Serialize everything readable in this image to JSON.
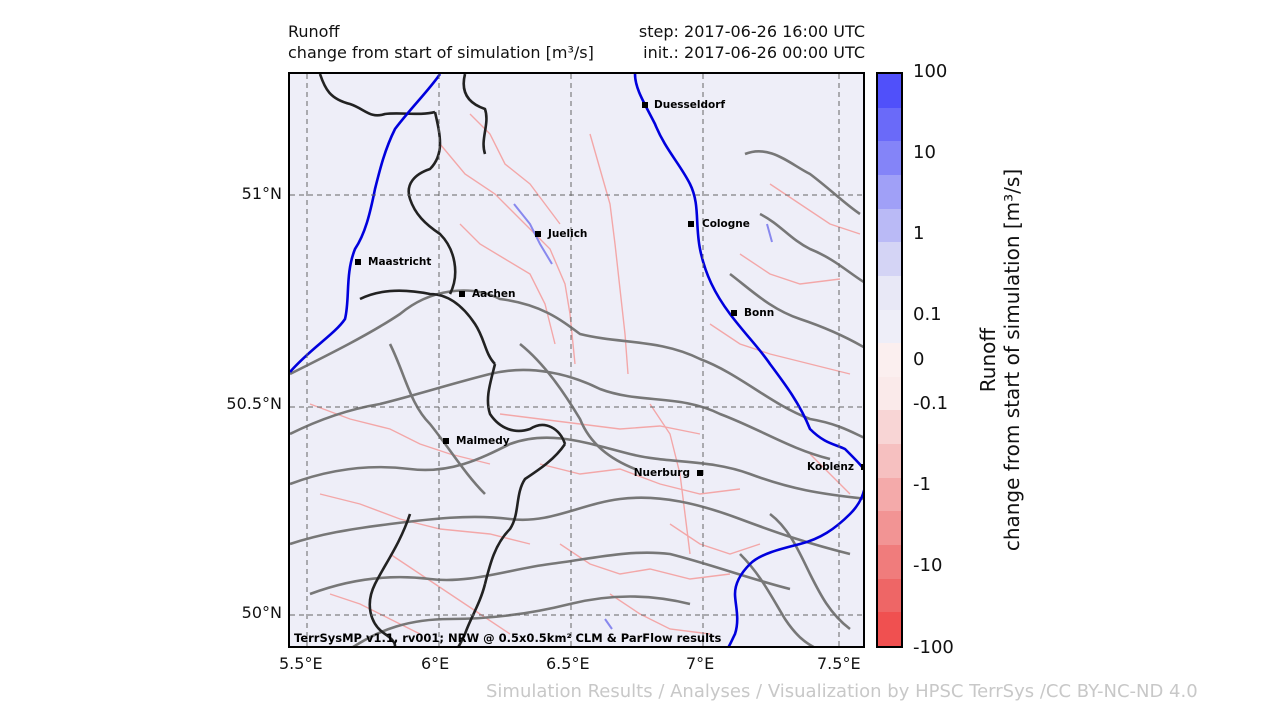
{
  "header": {
    "variable": "Runoff",
    "description": "change from start of simulation [m³/s]",
    "step": "step: 2017-06-26 16:00 UTC",
    "init": "init.: 2017-06-26 00:00 UTC"
  },
  "map": {
    "lon_range": [
      5.47,
      5.61
    ],
    "lat_range": [
      49.93,
      51.31
    ],
    "lon_ticks": [
      "5.5°E",
      "6°E",
      "6.5°E",
      "7°E",
      "7.5°E"
    ],
    "lat_ticks": [
      "51°N",
      "50.5°N",
      "50°N"
    ],
    "credit": "TerrSysMP v1.1, rv001; NRW @ 0.5x0.5km² CLM & ParFlow results",
    "cities": [
      {
        "name": "Duesseldorf",
        "lon": 6.78,
        "lat": 51.23
      },
      {
        "name": "Juelich",
        "lon": 6.36,
        "lat": 50.92
      },
      {
        "name": "Cologne",
        "lon": 6.95,
        "lat": 50.94
      },
      {
        "name": "Maastricht",
        "lon": 5.69,
        "lat": 50.85
      },
      {
        "name": "Aachen",
        "lon": 6.08,
        "lat": 50.78
      },
      {
        "name": "Bonn",
        "lon": 7.1,
        "lat": 50.73
      },
      {
        "name": "Malmedy",
        "lon": 6.03,
        "lat": 50.43
      },
      {
        "name": "Nuerburg",
        "lon": 6.95,
        "lat": 50.34
      },
      {
        "name": "Koblenz",
        "lon": 7.59,
        "lat": 50.36
      }
    ],
    "colors": {
      "background": "#eeeef8",
      "river": "#0000dd",
      "border": "#222222",
      "contour": "#777777",
      "negative_change": "#f4a0a0",
      "positive_change": "#8888ee",
      "grid": "#666666"
    }
  },
  "colorbar": {
    "title_line1": "Runoff",
    "title_line2": "change from start of simulation [m³/s]",
    "ticks": [
      "100",
      "10",
      "1",
      "0.1",
      "0",
      "-0.1",
      "-1",
      "-10",
      "-100"
    ],
    "levels": [
      {
        "from": 100,
        "color": "#5050fa"
      },
      {
        "from": 30,
        "color": "#6a6af9"
      },
      {
        "from": 10,
        "color": "#8484f8"
      },
      {
        "from": 3,
        "color": "#a0a0f7"
      },
      {
        "from": 1,
        "color": "#babaf6"
      },
      {
        "from": 0.3,
        "color": "#d4d4f5"
      },
      {
        "from": 0.1,
        "color": "#e8e8f6"
      },
      {
        "from": 0.03,
        "color": "#eeeef8"
      },
      {
        "from": 0,
        "color": "#fbefef"
      },
      {
        "from": -0.03,
        "color": "#faeaea"
      },
      {
        "from": -0.1,
        "color": "#f8d5d5"
      },
      {
        "from": -0.3,
        "color": "#f6c0c0"
      },
      {
        "from": -1,
        "color": "#f4aaaa"
      },
      {
        "from": -3,
        "color": "#f29494"
      },
      {
        "from": -10,
        "color": "#f07c7c"
      },
      {
        "from": -30,
        "color": "#ee6666"
      },
      {
        "from": -100,
        "color": "#f05050"
      }
    ]
  },
  "footer": "Simulation Results / Analyses / Visualization by HPSC TerrSys /CC BY-NC-ND 4.0"
}
